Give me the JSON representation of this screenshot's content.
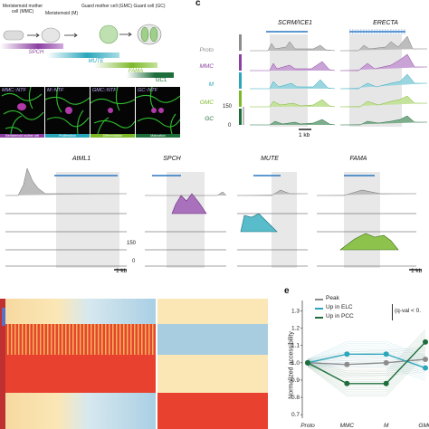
{
  "panel_a": {
    "stages": [
      "Meristemoid mother cell (MMC)",
      "Meristemoid (M)",
      "Guard mother cell (GMC)",
      "Guard cell (GC)"
    ],
    "bars": [
      {
        "label": "SPCH",
        "color": "#8b3fa0"
      },
      {
        "label": "MUTE",
        "color": "#2aa6bb"
      },
      {
        "label": "FAMA",
        "color": "#7cb82a"
      },
      {
        "label": "GC1",
        "color": "#1e6e3c"
      }
    ]
  },
  "panel_b": {
    "images": [
      {
        "label": "MMC::NTF",
        "strip": "Meristemoid mother cell",
        "strip_color": "#8b3fa0"
      },
      {
        "label": "M::NTF",
        "strip": "Proliferation",
        "strip_color": "#2aa6bb"
      },
      {
        "label": "GMC::NTF",
        "strip": "Differentiation",
        "strip_color": "#7cb82a"
      },
      {
        "label": "GC::NTF",
        "strip": "Maturation",
        "strip_color": "#1e6e3c"
      }
    ]
  },
  "panel_c": {
    "letter": "c",
    "genes": [
      "SCRM/ICE1",
      "ERECTA"
    ],
    "tracks": [
      {
        "name": "Proto",
        "color": "#8c8c8c"
      },
      {
        "name": "MMC",
        "color": "#8b3fa0"
      },
      {
        "name": "M",
        "color": "#2aa6bb"
      },
      {
        "name": "GMC",
        "color": "#7cb82a"
      },
      {
        "name": "GC",
        "color": "#1e6e3c"
      }
    ],
    "scale_max": "150",
    "scale_min": "0",
    "scalebar": "1 kb"
  },
  "panel_d": {
    "genes": [
      "AtML1",
      "SPCH",
      "MUTE",
      "FAMA"
    ],
    "scale_max": "150",
    "scale_min": "0",
    "scalebars": [
      "1 kb",
      "1 kb"
    ]
  },
  "panel_e": {
    "letter": "e",
    "legend": [
      {
        "label": "Peak",
        "color": "#8c8c8c"
      },
      {
        "label": "Up in ELC",
        "color": "#2aa6bb"
      },
      {
        "label": "Up in PCC",
        "color": "#1e6e3c"
      }
    ],
    "bracket_label": "(q-val < 0.",
    "ylabel": "Normalized accessibility",
    "yticks": [
      "1.3",
      "1.2",
      "1.1",
      "1.0",
      "0.9",
      "0.8",
      "0.7"
    ],
    "xticks": [
      "Proto",
      "MMC",
      "M",
      "GMC"
    ]
  },
  "chart_data": {
    "type": "line",
    "ylabel": "Normalized accessibility",
    "categories": [
      "Proto",
      "MMC",
      "M",
      "GMC"
    ],
    "ylim": [
      0.68,
      1.36
    ],
    "series": [
      {
        "name": "Peak",
        "values": [
          1.0,
          0.99,
          1.0,
          1.02
        ],
        "color": "#8c8c8c"
      },
      {
        "name": "Up in ELC",
        "values": [
          1.0,
          1.05,
          1.05,
          0.97
        ],
        "color": "#2aa6bb"
      },
      {
        "name": "Up in PCC",
        "values": [
          1.0,
          0.88,
          0.88,
          1.12
        ],
        "color": "#1e6e3c"
      }
    ]
  }
}
